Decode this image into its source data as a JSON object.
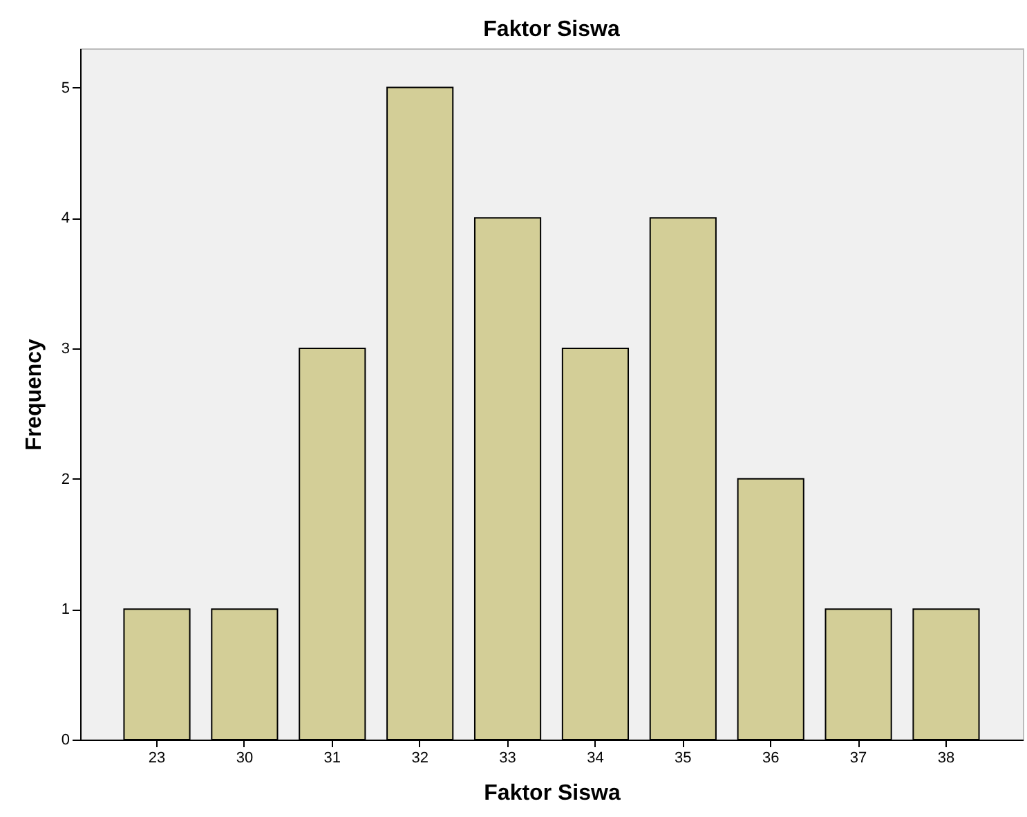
{
  "chart_data": {
    "type": "bar",
    "title": "Faktor Siswa",
    "xlabel": "Faktor Siswa",
    "ylabel": "Frequency",
    "categories": [
      "23",
      "30",
      "31",
      "32",
      "33",
      "34",
      "35",
      "36",
      "37",
      "38"
    ],
    "values": [
      1,
      1,
      3,
      5,
      4,
      3,
      4,
      2,
      1,
      1
    ],
    "color": "#d3ce97",
    "ylim": [
      0,
      5.3
    ],
    "yticks": [
      0,
      1,
      2,
      3,
      4,
      5
    ],
    "grid": false
  }
}
